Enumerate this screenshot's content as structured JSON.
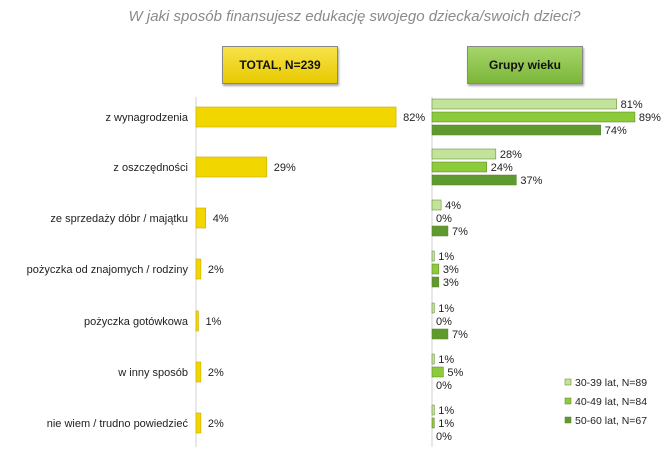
{
  "title": "W jaki sposób finansujesz edukację swojego dziecka/swoich dzieci?",
  "header_total": "TOTAL, N=239",
  "header_age": "Grupy wieku",
  "colors": {
    "total": "#f2d600",
    "s1": "#c4e39a",
    "s2": "#8ccc3a",
    "s3": "#5f9a2e"
  },
  "chart_data": [
    {
      "type": "bar",
      "orientation": "horizontal",
      "categories": [
        "z wynagrodzenia",
        "z oszczędności",
        "ze sprzedaży dóbr / majątku",
        "pożyczka od znajomych / rodziny",
        "pożyczka gotówkowa",
        "w inny sposób",
        "nie wiem / trudno powiedzieć"
      ],
      "series": [
        {
          "name": "TOTAL, N=239",
          "values": [
            82,
            29,
            4,
            2,
            1,
            2,
            2
          ]
        }
      ],
      "unit": "%"
    },
    {
      "type": "bar",
      "orientation": "horizontal",
      "categories": [
        "z wynagrodzenia",
        "z oszczędności",
        "ze sprzedaży dóbr / majątku",
        "pożyczka od znajomych / rodziny",
        "pożyczka gotówkowa",
        "w inny sposób",
        "nie wiem / trudno powiedzieć"
      ],
      "series": [
        {
          "name": "30-39 lat, N=89",
          "values": [
            81,
            28,
            4,
            1,
            1,
            1,
            1
          ]
        },
        {
          "name": "40-49 lat, N=84",
          "values": [
            89,
            24,
            0,
            3,
            0,
            5,
            1
          ]
        },
        {
          "name": "50-60 lat, N=67",
          "values": [
            74,
            37,
            7,
            3,
            7,
            0,
            0
          ]
        }
      ],
      "legend_position": "bottom-right",
      "unit": "%"
    }
  ]
}
